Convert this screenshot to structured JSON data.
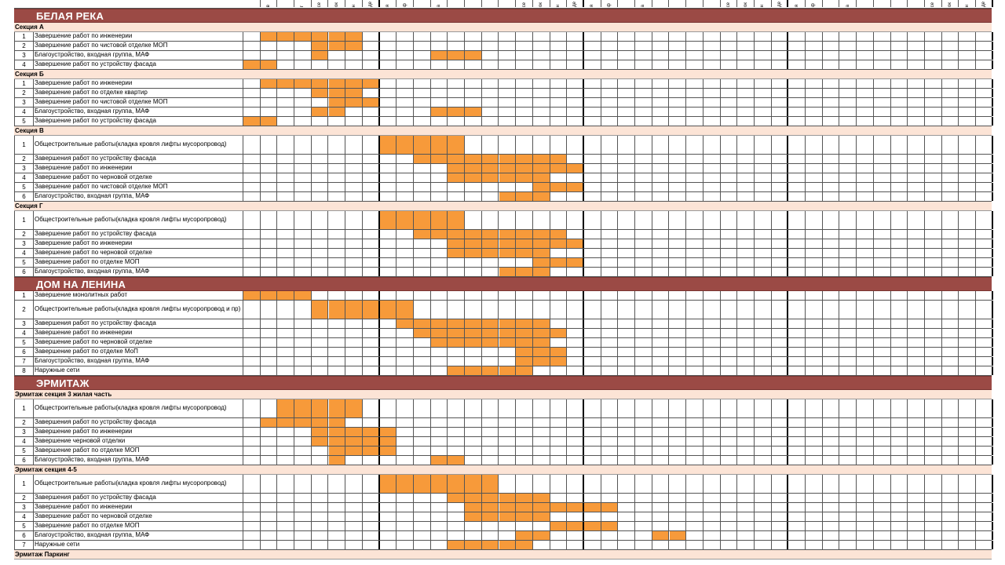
{
  "months": [
    "",
    "в",
    "",
    "г",
    "се",
    "ок",
    "н",
    "де",
    "я",
    "ф",
    "",
    "а",
    "",
    "",
    "",
    "",
    " се",
    "ок",
    "н",
    "де",
    "я",
    "ф",
    "",
    "а",
    "",
    "",
    "",
    "",
    "се",
    "ок",
    "н",
    "де",
    "я",
    "ф",
    "",
    "а",
    "",
    "",
    "",
    "",
    "се",
    "ок",
    "н",
    "де"
  ],
  "colors": {
    "banner": "#9b4a45",
    "section": "#fce4d6",
    "bar": "#f79a3a",
    "grid": "#555555"
  },
  "blocks": [
    {
      "kind": "banner",
      "label": "БЕЛАЯ РЕКА"
    },
    {
      "kind": "section",
      "label": "Секция А"
    },
    {
      "kind": "task",
      "num": "1",
      "name": "Завершение работ по инженерии",
      "bars": [
        1,
        2,
        3,
        4,
        5,
        6
      ]
    },
    {
      "kind": "task",
      "num": "2",
      "name": "Завершение работ по чистовой отделке МОП",
      "bars": [
        4,
        5,
        6
      ]
    },
    {
      "kind": "task",
      "num": "3",
      "name": "Благоустройство, входная группа, МАФ",
      "bars": [
        4,
        11,
        12,
        13
      ]
    },
    {
      "kind": "task",
      "num": "4",
      "name": "Завершение работ по устройству фасада",
      "bars": [
        0,
        1
      ]
    },
    {
      "kind": "section",
      "label": "Секция Б"
    },
    {
      "kind": "task",
      "num": "1",
      "name": "Завершение работ по инженерии",
      "bars": [
        1,
        2,
        3,
        4,
        5,
        6,
        7
      ]
    },
    {
      "kind": "task",
      "num": "2",
      "name": "Завершение работ по отделке квартир",
      "bars": [
        4,
        5,
        6
      ]
    },
    {
      "kind": "task",
      "num": "3",
      "name": "Завершение работ по чистовой отделке МОП",
      "bars": [
        5,
        6,
        7
      ]
    },
    {
      "kind": "task",
      "num": "4",
      "name": "Благоустройство, входная группа, МАФ",
      "bars": [
        4,
        5,
        11,
        12,
        13
      ]
    },
    {
      "kind": "task",
      "num": "5",
      "name": "Завершение работ по устройству фасада",
      "bars": [
        0,
        1
      ]
    },
    {
      "kind": "section",
      "label": "Секция В"
    },
    {
      "kind": "task",
      "num": "1",
      "name": "Общестроительные работы(кладка кровля лифты мусоропровод)",
      "tall": true,
      "bars": [
        8,
        9,
        10,
        11,
        12
      ]
    },
    {
      "kind": "task",
      "num": "2",
      "name": "Завершения работ по устройству фасада",
      "bars": [
        10,
        11,
        12,
        13,
        14,
        15,
        16,
        17,
        18
      ]
    },
    {
      "kind": "task",
      "num": "3",
      "name": "Завершение работ по инженерии",
      "bars": [
        12,
        13,
        14,
        15,
        16,
        17,
        18,
        19
      ]
    },
    {
      "kind": "task",
      "num": "4",
      "name": "Завершение работ по черновой отделке",
      "bars": [
        12,
        13,
        14,
        15,
        16,
        17
      ]
    },
    {
      "kind": "task",
      "num": "5",
      "name": "Завершение работ по чистовой отделке МОП",
      "bars": [
        17,
        18,
        19
      ]
    },
    {
      "kind": "task",
      "num": "6",
      "name": "Благоустройство, входная группа, МАФ",
      "bars": [
        15,
        16,
        17
      ]
    },
    {
      "kind": "section",
      "label": "Секция Г"
    },
    {
      "kind": "task",
      "num": "1",
      "name": "Общестроительные работы(кладка кровля лифты мусоропровод)",
      "tall": true,
      "bars": [
        8,
        9,
        10,
        11,
        12
      ]
    },
    {
      "kind": "task",
      "num": "2",
      "name": "Завершение работ по устройству фасада",
      "bars": [
        10,
        11,
        12,
        13,
        14,
        15,
        16,
        17,
        18
      ]
    },
    {
      "kind": "task",
      "num": "3",
      "name": "Завершение работ по инженерии",
      "bars": [
        12,
        13,
        14,
        15,
        16,
        17,
        18,
        19
      ]
    },
    {
      "kind": "task",
      "num": "4",
      "name": "Завершение работ по черновой отделке",
      "bars": [
        12,
        13,
        14,
        15,
        16,
        17
      ]
    },
    {
      "kind": "task",
      "num": "5",
      "name": "Завершение работ по отделке МОП",
      "bars": [
        17,
        18,
        19
      ]
    },
    {
      "kind": "task",
      "num": "6",
      "name": "Благоустройство, входная группа, МАФ",
      "bars": [
        15,
        16,
        17
      ]
    },
    {
      "kind": "banner",
      "label": "ДОМ НА ЛЕНИНА"
    },
    {
      "kind": "task",
      "num": "1",
      "name": "Завершение монолитных работ",
      "bars": [
        0,
        1,
        2,
        3
      ]
    },
    {
      "kind": "task",
      "num": "2",
      "name": "Общестроительные работы(кладка кровля лифты мусоропровод и пр)",
      "tall": true,
      "bars": [
        4,
        5,
        6,
        7,
        8,
        9
      ]
    },
    {
      "kind": "task",
      "num": "3",
      "name": "Завершения работ по устройству фасада",
      "bars": [
        9,
        10,
        11,
        12,
        13,
        14,
        15,
        16,
        17
      ]
    },
    {
      "kind": "task",
      "num": "4",
      "name": "Завершение работ по инженерии",
      "bars": [
        10,
        11,
        12,
        13,
        14,
        15,
        16,
        17,
        18
      ]
    },
    {
      "kind": "task",
      "num": "5",
      "name": "Завершение работ по черновой отделке",
      "bars": [
        11,
        12,
        13,
        14,
        15,
        16,
        17
      ]
    },
    {
      "kind": "task",
      "num": "6",
      "name": "Завершение работ по отделке МоП",
      "bars": [
        16,
        17,
        18
      ]
    },
    {
      "kind": "task",
      "num": "7",
      "name": "Благоустройство, входная группа, МАФ",
      "bars": [
        16,
        17,
        18
      ]
    },
    {
      "kind": "task",
      "num": "8",
      "name": "Наружные сети",
      "bars": [
        12,
        13,
        14,
        15,
        16
      ]
    },
    {
      "kind": "banner",
      "label": "ЭРМИТАЖ"
    },
    {
      "kind": "section",
      "label": "Эрмитаж секция 3 жилая часть"
    },
    {
      "kind": "task",
      "num": "1",
      "name": "Общестроительные работы(кладка кровля лифты мусоропровод)",
      "tall": true,
      "bars": [
        2,
        3,
        4,
        5,
        6
      ]
    },
    {
      "kind": "task",
      "num": "2",
      "name": "Завершения работ по устройству фасада",
      "bars": [
        1,
        2,
        3,
        4,
        5
      ]
    },
    {
      "kind": "task",
      "num": "3",
      "name": "Завершение работ по инженерии",
      "bars": [
        4,
        5,
        6,
        7,
        8
      ]
    },
    {
      "kind": "task",
      "num": "4",
      "name": "Завершение черновой отделки",
      "bars": [
        4,
        5,
        6,
        7,
        8
      ]
    },
    {
      "kind": "task",
      "num": "5",
      "name": "Завершение работ по отделке МОП",
      "bars": [
        5,
        6,
        7,
        8
      ]
    },
    {
      "kind": "task",
      "num": "6",
      "name": "Благоустройство, входная группа, МАФ",
      "bars": [
        5,
        11,
        12
      ]
    },
    {
      "kind": "section",
      "label": "Эрмитаж секция 4-5"
    },
    {
      "kind": "task",
      "num": "1",
      "name": "Общестроительные работы(кладка кровля лифты мусоропровод)",
      "tall": true,
      "bars": [
        8,
        9,
        10,
        11,
        12,
        13,
        14
      ]
    },
    {
      "kind": "task",
      "num": "2",
      "name": "Завершения работ по устройству фасада",
      "bars": [
        12,
        13,
        14,
        15,
        16,
        17
      ]
    },
    {
      "kind": "task",
      "num": "3",
      "name": "Завершение работ по инженерии",
      "bars": [
        13,
        14,
        15,
        16,
        17,
        18,
        19,
        20,
        21
      ]
    },
    {
      "kind": "task",
      "num": "4",
      "name": "Завершение работ по черновой отделке",
      "bars": [
        13,
        14,
        15,
        16,
        17
      ]
    },
    {
      "kind": "task",
      "num": "5",
      "name": "Завершение работ по отделке МОП",
      "bars": [
        18,
        19,
        20,
        21
      ]
    },
    {
      "kind": "task",
      "num": "6",
      "name": "Благоустройство, входная группа, МАФ",
      "bars": [
        16,
        17,
        24,
        25
      ]
    },
    {
      "kind": "task",
      "num": "7",
      "name": "Наружные сети",
      "bars": [
        12,
        13,
        14,
        15,
        16
      ]
    },
    {
      "kind": "section",
      "label": "Эрмитаж Паркинг"
    }
  ]
}
